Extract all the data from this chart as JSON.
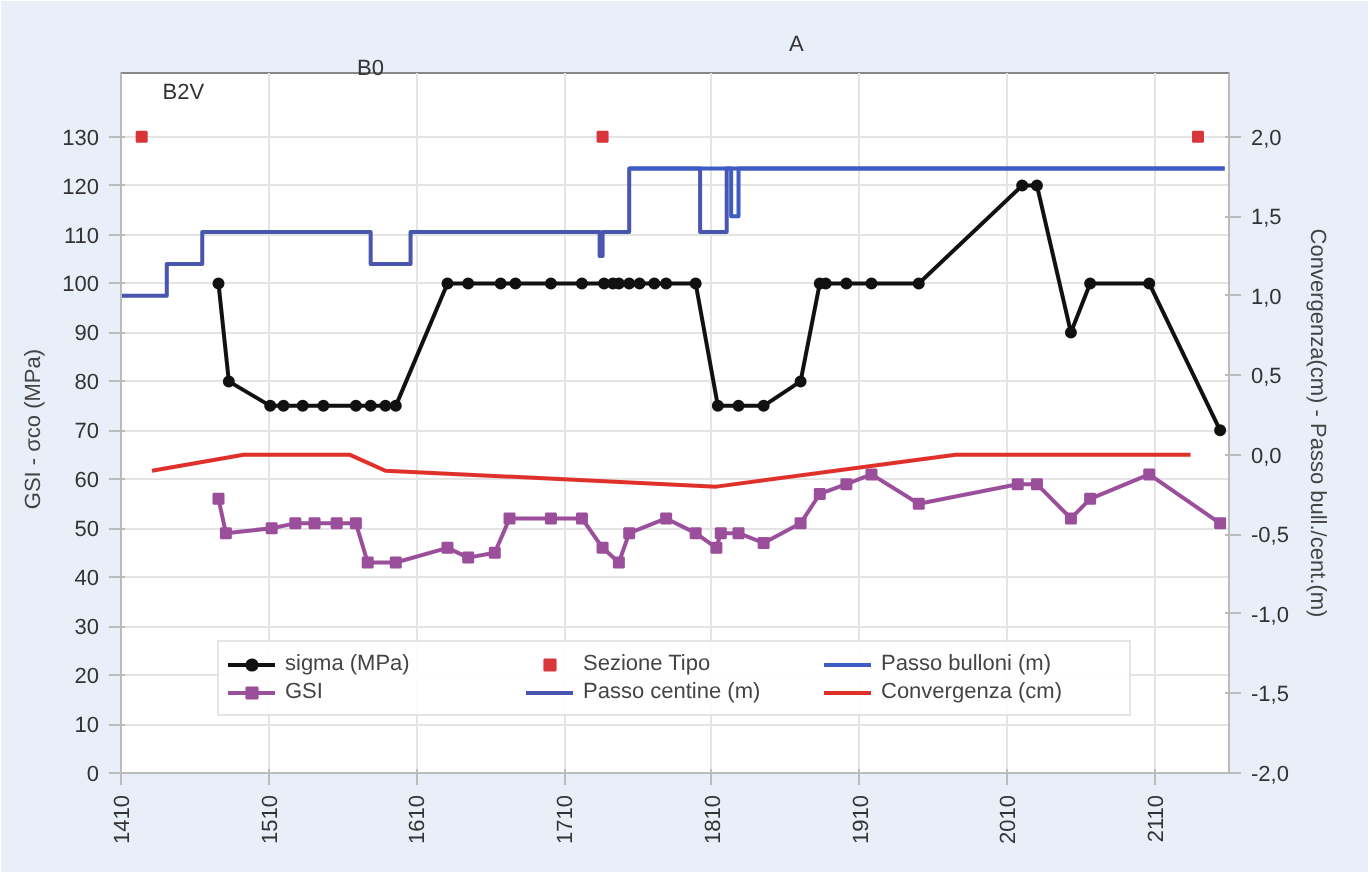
{
  "chart_data": {
    "type": "line",
    "ylabel": "GSI  -  σco (MPa)",
    "y2label": "Convergenza(cm) - Passo bull./cent.(m)",
    "xlim": [
      1410,
      2160
    ],
    "xticks": [
      1410,
      1510,
      1610,
      1710,
      1810,
      1910,
      2010,
      2110
    ],
    "ylim": [
      0,
      143
    ],
    "yticks": [
      0,
      10,
      20,
      30,
      40,
      50,
      60,
      70,
      80,
      90,
      100,
      110,
      120,
      130
    ],
    "y2lim": [
      -2.0,
      2.4
    ],
    "y2ticks": [
      {
        "value": -2,
        "label": "-2,0"
      },
      {
        "value": -1.5,
        "label": "-1,5"
      },
      {
        "value": -1,
        "label": "-1,0"
      },
      {
        "value": -0.5,
        "label": "-0,5"
      },
      {
        "value": 0,
        "label": "0,0"
      },
      {
        "value": 0.5,
        "label": "0,5"
      },
      {
        "value": 1,
        "label": "1,0"
      },
      {
        "value": 1.5,
        "label": "1,5"
      },
      {
        "value": 2,
        "label": "2,0"
      }
    ],
    "grid": true,
    "legend": "bottom",
    "annotations": [
      "B2V",
      "B0",
      "A"
    ],
    "series": [
      {
        "name": "sigma (MPa)",
        "marker": "circle",
        "color": "#111111",
        "x": [
          1476,
          1483,
          1511,
          1520,
          1533,
          1547,
          1569,
          1579,
          1589,
          1596,
          1631,
          1645,
          1667,
          1677,
          1701,
          1722,
          1737,
          1743,
          1747,
          1754,
          1761,
          1771,
          1779,
          1799,
          1814,
          1828,
          1845,
          1870,
          1883,
          1887,
          1901,
          1918,
          1950,
          2020,
          2030,
          2053,
          2066,
          2106,
          2154
        ],
        "values": [
          100,
          80,
          75,
          75,
          75,
          75,
          75,
          75,
          75,
          75,
          100,
          100,
          100,
          100,
          100,
          100,
          100,
          100,
          100,
          100,
          100,
          100,
          100,
          100,
          75,
          75,
          75,
          80,
          100,
          100,
          100,
          100,
          100,
          120,
          120,
          90,
          100,
          100,
          70
        ]
      },
      {
        "name": "GSI",
        "marker": "square",
        "color": "#9b4f9b",
        "x": [
          1476,
          1481,
          1512,
          1528,
          1541,
          1556,
          1569,
          1577,
          1596,
          1631,
          1645,
          1663,
          1673,
          1701,
          1722,
          1736,
          1747,
          1754,
          1779,
          1799,
          1813,
          1816,
          1828,
          1845,
          1870,
          1883,
          1901,
          1918,
          1950,
          2017,
          2030,
          2053,
          2066,
          2106,
          2154
        ],
        "values": [
          56,
          49,
          50,
          51,
          51,
          51,
          51,
          43,
          43,
          46,
          44,
          45,
          52,
          52,
          52,
          46,
          43,
          49,
          52,
          49,
          46,
          49,
          49,
          47,
          51,
          57,
          59,
          61,
          55,
          59,
          59,
          52,
          56,
          61,
          51
        ]
      },
      {
        "name": "Sezione Tipo",
        "type": "scatter",
        "marker": "square",
        "color": "#d8363a",
        "x": [
          1424,
          1736,
          2139
        ],
        "values": [
          130,
          130,
          130
        ]
      },
      {
        "name": "Passo centine (m)",
        "type": "step",
        "axis": "y2",
        "color": "#4a55b0",
        "x": [
          1410,
          1441,
          1465,
          1579,
          1606,
          1734,
          1736,
          1738,
          1754,
          1802,
          1820,
          2157
        ],
        "values": [
          1.0,
          1.2,
          1.4,
          1.2,
          1.4,
          1.25,
          1.4,
          1.4,
          1.8,
          1.4,
          1.8,
          1.8
        ]
      },
      {
        "name": "Passo bulloni (m)",
        "type": "step",
        "axis": "y2",
        "color": "#3d5cc4",
        "x": [
          1754,
          1823,
          1828,
          2157
        ],
        "values": [
          1.8,
          1.5,
          1.8,
          1.8
        ]
      },
      {
        "name": "Convergenza (cm)",
        "axis": "y2",
        "color": "#e0302a",
        "x": [
          1431,
          1493,
          1565,
          1589,
          1813,
          1975,
          2134
        ],
        "values": [
          -0.1,
          0.0,
          0.0,
          -0.1,
          -0.2,
          0.0,
          0.0
        ]
      }
    ]
  }
}
